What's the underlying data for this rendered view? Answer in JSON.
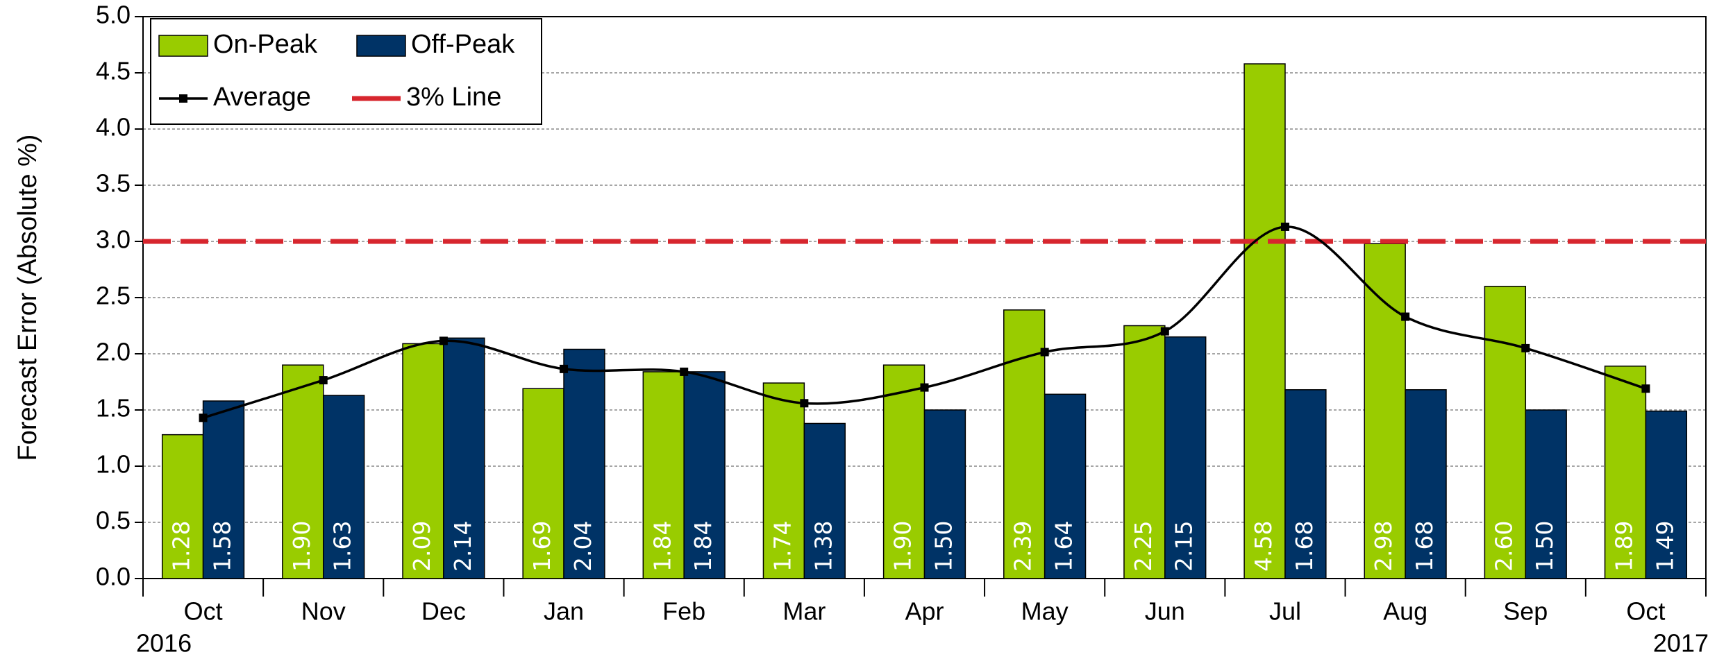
{
  "chart_data": {
    "type": "bar",
    "y_label": "Forecast Error  (Absolute %)",
    "categories": [
      "Oct",
      "Nov",
      "Dec",
      "Jan",
      "Feb",
      "Mar",
      "Apr",
      "May",
      "Jun",
      "Jul",
      "Aug",
      "Sep",
      "Oct"
    ],
    "years": [
      "2016",
      null,
      null,
      null,
      null,
      null,
      null,
      null,
      null,
      null,
      null,
      null,
      "2017"
    ],
    "series": [
      {
        "name": "On-Peak",
        "color": "#99cc00",
        "values": [
          1.28,
          1.9,
          2.09,
          1.69,
          1.84,
          1.74,
          1.9,
          2.39,
          2.25,
          4.58,
          2.98,
          2.6,
          1.89
        ],
        "value_labels": [
          "1.28",
          "1.90",
          "2.09",
          "1.69",
          "1.84",
          "1.74",
          "1.90",
          "2.39",
          "2.25",
          "4.58",
          "2.98",
          "2.60",
          "1.89"
        ]
      },
      {
        "name": "Off-Peak",
        "color": "#003366",
        "values": [
          1.58,
          1.63,
          2.14,
          2.04,
          1.84,
          1.38,
          1.5,
          1.64,
          2.15,
          1.68,
          1.68,
          1.5,
          1.49
        ],
        "value_labels": [
          "1.58",
          "1.63",
          "2.14",
          "2.04",
          "1.84",
          "1.38",
          "1.50",
          "1.64",
          "2.15",
          "1.68",
          "1.68",
          "1.50",
          "1.49"
        ]
      },
      {
        "name": "Average",
        "color": "#000000",
        "type": "line",
        "values": [
          1.43,
          1.765,
          2.115,
          1.865,
          1.84,
          1.56,
          1.7,
          2.015,
          2.2,
          3.13,
          2.33,
          2.05,
          1.69
        ]
      }
    ],
    "threshold": {
      "name": "3% Line",
      "value": 3,
      "color": "#d7262e"
    },
    "ylim": [
      0,
      5
    ],
    "yticks": [
      {
        "value": 0,
        "label": "0.0"
      },
      {
        "value": 0.5,
        "label": "0.5"
      },
      {
        "value": 1,
        "label": "1.0"
      },
      {
        "value": 1.5,
        "label": "1.5"
      },
      {
        "value": 2,
        "label": "2.0"
      },
      {
        "value": 2.5,
        "label": "2.5"
      },
      {
        "value": 3,
        "label": "3.0"
      },
      {
        "value": 3.5,
        "label": "3.5"
      },
      {
        "value": 4,
        "label": "4.0"
      },
      {
        "value": 4.5,
        "label": "4.5"
      },
      {
        "value": 5,
        "label": "5.0"
      }
    ],
    "grid": true,
    "legend": "top-left"
  }
}
